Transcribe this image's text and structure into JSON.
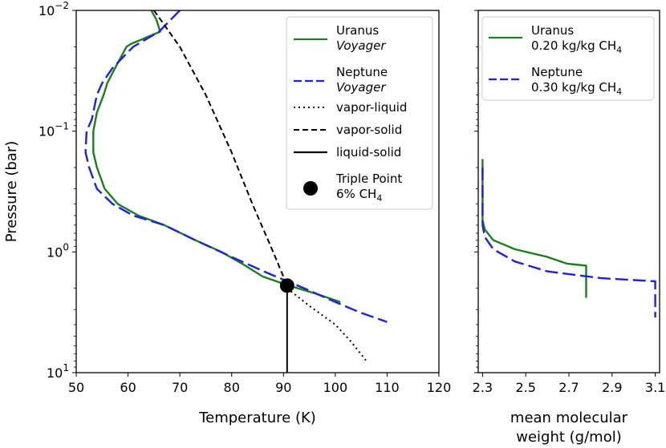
{
  "chart_data": [
    {
      "type": "line",
      "panel": "left",
      "xlabel": "Temperature (K)",
      "ylabel": "Pressure (bar)",
      "xlim": [
        50,
        120
      ],
      "ylim": [
        10,
        0.01
      ],
      "yscale": "log",
      "xticks": [
        "50",
        "60",
        "70",
        "80",
        "90",
        "100",
        "110",
        "120"
      ],
      "ytick_values": [
        0.01,
        0.1,
        1,
        10
      ],
      "yticks": [
        {
          "base": "10",
          "exp": "−2"
        },
        {
          "base": "10",
          "exp": "−1"
        },
        {
          "base": "10",
          "exp": "0"
        },
        {
          "base": "10",
          "exp": "1"
        }
      ],
      "legend_position": "top-right",
      "series": [
        {
          "name": "Uranus",
          "name_sub": "Voyager",
          "color": "#1a801a",
          "style": "solid",
          "points": [
            [
              64.5,
              0.01
            ],
            [
              65.5,
              0.012
            ],
            [
              66.2,
              0.015
            ],
            [
              60.5,
              0.019
            ],
            [
              59.7,
              0.02
            ],
            [
              57.5,
              0.03
            ],
            [
              56,
              0.04
            ],
            [
              55.3,
              0.05
            ],
            [
              54,
              0.07
            ],
            [
              53.3,
              0.1
            ],
            [
              53.3,
              0.15
            ],
            [
              54,
              0.2
            ],
            [
              55.5,
              0.3
            ],
            [
              58,
              0.4
            ],
            [
              62,
              0.5
            ],
            [
              67,
              0.6
            ],
            [
              73,
              0.8
            ],
            [
              78,
              1.0
            ],
            [
              82,
              1.25
            ],
            [
              86,
              1.6
            ],
            [
              91,
              1.9
            ],
            [
              96,
              2.2
            ],
            [
              101,
              2.6
            ]
          ]
        },
        {
          "name": "Neptune",
          "name_sub": "Voyager",
          "color": "#1f1fe6",
          "style": "dashed",
          "points": [
            [
              70,
              0.01
            ],
            [
              66,
              0.015
            ],
            [
              61,
              0.02
            ],
            [
              57,
              0.03
            ],
            [
              55,
              0.04
            ],
            [
              54,
              0.05
            ],
            [
              53,
              0.08
            ],
            [
              52,
              0.1
            ],
            [
              51.8,
              0.15
            ],
            [
              52.5,
              0.2
            ],
            [
              54,
              0.3
            ],
            [
              57,
              0.4
            ],
            [
              61,
              0.5
            ],
            [
              67,
              0.6
            ],
            [
              73,
              0.8
            ],
            [
              80,
              1.1
            ],
            [
              87,
              1.5
            ],
            [
              94,
              2.0
            ],
            [
              100,
              2.6
            ],
            [
              105,
              3.2
            ],
            [
              110,
              3.8
            ]
          ]
        },
        {
          "name": "vapor-liquid",
          "color": "#000000",
          "style": "dotted",
          "points": [
            [
              90.7,
              2.0
            ],
            [
              95,
              2.8
            ],
            [
              100,
              4.0
            ],
            [
              103,
              5.5
            ],
            [
              106,
              8.0
            ]
          ]
        },
        {
          "name": "vapor-solid",
          "color": "#000000",
          "style": "dashed",
          "points": [
            [
              65,
              0.01
            ],
            [
              70,
              0.02
            ],
            [
              75,
              0.05
            ],
            [
              80,
              0.15
            ],
            [
              84,
              0.4
            ],
            [
              88,
              1.0
            ],
            [
              90.7,
              1.9
            ]
          ]
        },
        {
          "name": "liquid-solid",
          "color": "#000000",
          "style": "solid",
          "points": [
            [
              90.7,
              1.9
            ],
            [
              90.7,
              10
            ]
          ]
        }
      ],
      "markers": [
        {
          "name": "Triple Point",
          "label_line2": "6% CH",
          "label_sub": "4",
          "x": 90.7,
          "y": 1.9
        }
      ]
    },
    {
      "type": "line",
      "panel": "right",
      "xlabel_line1": "mean molecular",
      "xlabel_line2": "weight (g/mol)",
      "xlim": [
        2.28,
        3.12
      ],
      "ylim": [
        10,
        0.01
      ],
      "yscale": "log",
      "xtick_values": [
        2.3,
        2.5,
        2.7,
        2.9,
        3.1
      ],
      "xticks": [
        "2.3",
        "2.5",
        "2.7",
        "2.9",
        "3.1"
      ],
      "legend_position": "top-right",
      "series": [
        {
          "name": "Uranus",
          "legend_line2": "0.20 kg/kg CH",
          "legend_sub": "4",
          "color": "#1a801a",
          "style": "solid",
          "points": [
            [
              2.3,
              0.17
            ],
            [
              2.3,
              0.55
            ],
            [
              2.31,
              0.65
            ],
            [
              2.35,
              0.8
            ],
            [
              2.45,
              0.95
            ],
            [
              2.6,
              1.1
            ],
            [
              2.69,
              1.25
            ],
            [
              2.78,
              1.3
            ],
            [
              2.78,
              2.4
            ]
          ]
        },
        {
          "name": "Neptune",
          "legend_line2": "0.30 kg/kg CH",
          "legend_sub": "4",
          "color": "#1f1fe6",
          "style": "dashed",
          "points": [
            [
              2.3,
              0.2
            ],
            [
              2.3,
              0.6
            ],
            [
              2.31,
              0.75
            ],
            [
              2.35,
              0.95
            ],
            [
              2.45,
              1.2
            ],
            [
              2.6,
              1.45
            ],
            [
              2.85,
              1.65
            ],
            [
              3.1,
              1.75
            ],
            [
              3.1,
              3.5
            ]
          ]
        }
      ]
    }
  ]
}
